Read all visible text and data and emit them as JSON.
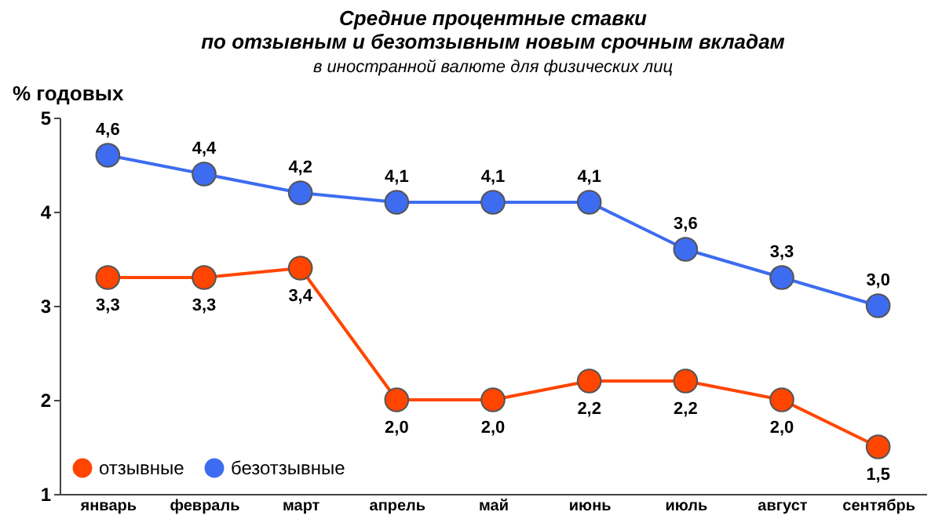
{
  "chart_data": {
    "type": "line",
    "title": [
      "Средние процентные ставки",
      "по отзывным и безотзывным новым срочным вкладам"
    ],
    "subtitle": "в иностранной валюте для физических лиц",
    "ylabel": "% годовых",
    "categories": [
      "январь",
      "февраль",
      "март",
      "апрель",
      "май",
      "июнь",
      "июль",
      "август",
      "сентябрь"
    ],
    "series": [
      {
        "name": "отзывные",
        "color": "#ff4500",
        "values": [
          3.3,
          3.3,
          3.4,
          2.0,
          2.0,
          2.2,
          2.2,
          2.0,
          1.5
        ],
        "value_labels": [
          "3,3",
          "3,3",
          "3,4",
          "2,0",
          "2,0",
          "2,2",
          "2,2",
          "2,0",
          "1,5"
        ]
      },
      {
        "name": "безотзывные",
        "color": "#3d6cf0",
        "values": [
          4.6,
          4.4,
          4.2,
          4.1,
          4.1,
          4.1,
          3.6,
          3.3,
          3.0
        ],
        "value_labels": [
          "4,6",
          "4,4",
          "4,2",
          "4,1",
          "4,1",
          "4,1",
          "3,6",
          "3,3",
          "3,0"
        ]
      }
    ],
    "ylim": [
      1,
      5
    ],
    "yticks": [
      1,
      2,
      3,
      4,
      5
    ],
    "grid": false,
    "legend": "bottom left",
    "marker": "circle",
    "line_style": "solid"
  }
}
